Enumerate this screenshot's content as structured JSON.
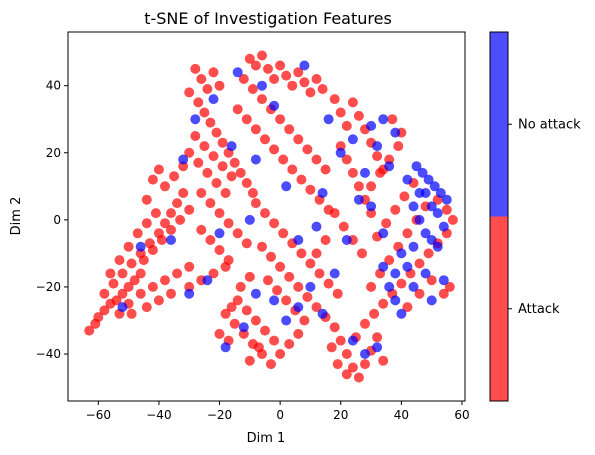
{
  "chart_data": {
    "type": "scatter",
    "title": "t-SNE of Investigation Features",
    "xlabel": "Dim 1",
    "ylabel": "Dim 2",
    "xlim": [
      -70,
      61
    ],
    "ylim": [
      -54,
      56
    ],
    "xticks": [
      -60,
      -40,
      -20,
      0,
      20,
      40,
      60
    ],
    "yticks": [
      -40,
      -20,
      0,
      20,
      40
    ],
    "grid": false,
    "colorbar": {
      "position": "right",
      "entries": [
        {
          "label": "Attack",
          "color": "#ff4d4d"
        },
        {
          "label": "No attack",
          "color": "#4d4dff"
        }
      ]
    },
    "series": [
      {
        "name": "Attack",
        "color": "#ff0000",
        "points": [
          [
            -63,
            -33
          ],
          [
            -61,
            -31
          ],
          [
            -60,
            -29
          ],
          [
            -58,
            -27
          ],
          [
            -56,
            -25
          ],
          [
            -54,
            -24
          ],
          [
            -52,
            -22
          ],
          [
            -50,
            -20
          ],
          [
            -48,
            -18
          ],
          [
            -46,
            -16
          ],
          [
            -58,
            -22
          ],
          [
            -55,
            -19
          ],
          [
            -52,
            -16
          ],
          [
            -49,
            -13
          ],
          [
            -46,
            -10
          ],
          [
            -43,
            -7
          ],
          [
            -40,
            -4
          ],
          [
            -38,
            -1
          ],
          [
            -36,
            2
          ],
          [
            -34,
            5
          ],
          [
            -32,
            8
          ],
          [
            -50,
            -25
          ],
          [
            -46,
            -22
          ],
          [
            -42,
            -20
          ],
          [
            -38,
            -18
          ],
          [
            -34,
            -16
          ],
          [
            -30,
            -14
          ],
          [
            -45,
            -12
          ],
          [
            -42,
            -9
          ],
          [
            -39,
            -6
          ],
          [
            -36,
            -3
          ],
          [
            -33,
            0
          ],
          [
            -30,
            3
          ],
          [
            -38,
            10
          ],
          [
            -35,
            13
          ],
          [
            -32,
            16
          ],
          [
            -40,
            15
          ],
          [
            -42,
            12
          ],
          [
            -44,
            6
          ],
          [
            -41,
            2
          ],
          [
            -47,
            -4
          ],
          [
            -44,
            -1
          ],
          [
            -50,
            -8
          ],
          [
            -53,
            -12
          ],
          [
            -56,
            -16
          ],
          [
            -53,
            -28
          ],
          [
            -49,
            -28
          ],
          [
            -44,
            -26
          ],
          [
            -40,
            -24
          ],
          [
            -36,
            -22
          ],
          [
            -30,
            -20
          ],
          [
            -26,
            -18
          ],
          [
            -22,
            -16
          ],
          [
            -18,
            -14
          ],
          [
            -28,
            45
          ],
          [
            -26,
            42
          ],
          [
            -24,
            39
          ],
          [
            -22,
            44
          ],
          [
            -20,
            40
          ],
          [
            -30,
            38
          ],
          [
            -27,
            35
          ],
          [
            -25,
            32
          ],
          [
            -23,
            29
          ],
          [
            -21,
            26
          ],
          [
            -19,
            23
          ],
          [
            -17,
            20
          ],
          [
            -15,
            17
          ],
          [
            -13,
            14
          ],
          [
            -11,
            11
          ],
          [
            -9,
            8
          ],
          [
            -28,
            25
          ],
          [
            -25,
            22
          ],
          [
            -22,
            19
          ],
          [
            -19,
            16
          ],
          [
            -16,
            13
          ],
          [
            -30,
            20
          ],
          [
            -27,
            17
          ],
          [
            -24,
            14
          ],
          [
            -21,
            11
          ],
          [
            -18,
            8
          ],
          [
            -26,
            8
          ],
          [
            -23,
            5
          ],
          [
            -20,
            2
          ],
          [
            -17,
            -1
          ],
          [
            -14,
            -4
          ],
          [
            -11,
            -7
          ],
          [
            -26,
            -3
          ],
          [
            -23,
            -6
          ],
          [
            -20,
            -9
          ],
          [
            -17,
            -12
          ],
          [
            -10,
            48
          ],
          [
            -8,
            46
          ],
          [
            -6,
            49
          ],
          [
            -4,
            45
          ],
          [
            -2,
            42
          ],
          [
            0,
            46
          ],
          [
            2,
            43
          ],
          [
            4,
            40
          ],
          [
            6,
            44
          ],
          [
            8,
            41
          ],
          [
            10,
            38
          ],
          [
            12,
            42
          ],
          [
            14,
            39
          ],
          [
            -12,
            42
          ],
          [
            -9,
            39
          ],
          [
            -6,
            36
          ],
          [
            -3,
            33
          ],
          [
            0,
            30
          ],
          [
            3,
            27
          ],
          [
            6,
            24
          ],
          [
            9,
            21
          ],
          [
            12,
            18
          ],
          [
            15,
            15
          ],
          [
            -14,
            33
          ],
          [
            -11,
            30
          ],
          [
            -8,
            27
          ],
          [
            -5,
            24
          ],
          [
            -2,
            21
          ],
          [
            1,
            18
          ],
          [
            4,
            15
          ],
          [
            7,
            12
          ],
          [
            10,
            9
          ],
          [
            13,
            6
          ],
          [
            16,
            3
          ],
          [
            18,
            36
          ],
          [
            20,
            32
          ],
          [
            22,
            28
          ],
          [
            24,
            35
          ],
          [
            26,
            31
          ],
          [
            28,
            27
          ],
          [
            30,
            23
          ],
          [
            32,
            19
          ],
          [
            34,
            15
          ],
          [
            20,
            22
          ],
          [
            22,
            18
          ],
          [
            24,
            14
          ],
          [
            26,
            10
          ],
          [
            28,
            6
          ],
          [
            30,
            2
          ],
          [
            -8,
            5
          ],
          [
            -5,
            2
          ],
          [
            -2,
            -1
          ],
          [
            1,
            -4
          ],
          [
            4,
            -7
          ],
          [
            7,
            -10
          ],
          [
            10,
            -13
          ],
          [
            13,
            -16
          ],
          [
            16,
            -19
          ],
          [
            19,
            -22
          ],
          [
            -6,
            -8
          ],
          [
            -3,
            -11
          ],
          [
            0,
            -14
          ],
          [
            3,
            -17
          ],
          [
            6,
            -20
          ],
          [
            9,
            -23
          ],
          [
            12,
            -26
          ],
          [
            15,
            -29
          ],
          [
            -4,
            -18
          ],
          [
            -1,
            -21
          ],
          [
            2,
            -24
          ],
          [
            5,
            -27
          ],
          [
            8,
            -30
          ],
          [
            -18,
            -28
          ],
          [
            -15,
            -31
          ],
          [
            -12,
            -34
          ],
          [
            -9,
            -37
          ],
          [
            -6,
            -40
          ],
          [
            -3,
            -43
          ],
          [
            0,
            -40
          ],
          [
            3,
            -37
          ],
          [
            6,
            -34
          ],
          [
            -14,
            -24
          ],
          [
            -11,
            -27
          ],
          [
            -8,
            -30
          ],
          [
            -5,
            -33
          ],
          [
            -2,
            -36
          ],
          [
            -20,
            -34
          ],
          [
            -17,
            -36
          ],
          [
            -10,
            -42
          ],
          [
            -7,
            -38
          ],
          [
            -16,
            -26
          ],
          [
            -13,
            -20
          ],
          [
            -10,
            -17
          ],
          [
            18,
            -32
          ],
          [
            20,
            -36
          ],
          [
            22,
            -40
          ],
          [
            24,
            -44
          ],
          [
            26,
            -47
          ],
          [
            28,
            -43
          ],
          [
            30,
            -39
          ],
          [
            32,
            -35
          ],
          [
            34,
            -42
          ],
          [
            22,
            -46
          ],
          [
            19,
            -43
          ],
          [
            17,
            -38
          ],
          [
            25,
            -35
          ],
          [
            28,
            -31
          ],
          [
            31,
            -28
          ],
          [
            34,
            -25
          ],
          [
            37,
            -22
          ],
          [
            40,
            -19
          ],
          [
            43,
            -16
          ],
          [
            46,
            -13
          ],
          [
            49,
            -10
          ],
          [
            52,
            -7
          ],
          [
            55,
            -4
          ],
          [
            30,
            -20
          ],
          [
            33,
            -16
          ],
          [
            36,
            -12
          ],
          [
            39,
            -8
          ],
          [
            42,
            -4
          ],
          [
            45,
            0
          ],
          [
            48,
            4
          ],
          [
            32,
            -5
          ],
          [
            35,
            -1
          ],
          [
            38,
            3
          ],
          [
            41,
            7
          ],
          [
            44,
            11
          ],
          [
            30,
            10
          ],
          [
            33,
            14
          ],
          [
            36,
            18
          ],
          [
            39,
            22
          ],
          [
            27,
            -10
          ],
          [
            24,
            -6
          ],
          [
            21,
            -2
          ],
          [
            18,
            2
          ],
          [
            15,
            -6
          ],
          [
            12,
            -10
          ],
          [
            42,
            -26
          ],
          [
            46,
            -22
          ],
          [
            50,
            -18
          ],
          [
            54,
            -22
          ],
          [
            56,
            -20
          ],
          [
            57,
            0
          ],
          [
            55,
            3
          ],
          [
            52,
            6
          ],
          [
            40,
            26
          ],
          [
            37,
            30
          ]
        ]
      },
      {
        "name": "No attack",
        "color": "#0000ff",
        "points": [
          [
            45,
            16
          ],
          [
            47,
            14
          ],
          [
            49,
            12
          ],
          [
            51,
            10
          ],
          [
            53,
            8
          ],
          [
            55,
            6
          ],
          [
            48,
            8
          ],
          [
            50,
            4
          ],
          [
            52,
            2
          ],
          [
            54,
            -2
          ],
          [
            46,
            0
          ],
          [
            48,
            -4
          ],
          [
            50,
            -6
          ],
          [
            52,
            -8
          ],
          [
            44,
            4
          ],
          [
            46,
            8
          ],
          [
            42,
            12
          ],
          [
            44,
            -8
          ],
          [
            40,
            -10
          ],
          [
            42,
            -14
          ],
          [
            38,
            -16
          ],
          [
            36,
            -20
          ],
          [
            34,
            -14
          ],
          [
            38,
            -24
          ],
          [
            40,
            -28
          ],
          [
            44,
            -20
          ],
          [
            48,
            -16
          ],
          [
            50,
            -24
          ],
          [
            54,
            -18
          ],
          [
            30,
            28
          ],
          [
            34,
            30
          ],
          [
            38,
            26
          ],
          [
            32,
            22
          ],
          [
            36,
            16
          ],
          [
            28,
            14
          ],
          [
            26,
            6
          ],
          [
            30,
            4
          ],
          [
            34,
            -4
          ],
          [
            22,
            -6
          ],
          [
            18,
            -16
          ],
          [
            10,
            -20
          ],
          [
            6,
            -26
          ],
          [
            2,
            -30
          ],
          [
            14,
            -28
          ],
          [
            24,
            -36
          ],
          [
            28,
            -40
          ],
          [
            32,
            -38
          ],
          [
            -2,
            -24
          ],
          [
            -8,
            -22
          ],
          [
            -12,
            -32
          ],
          [
            -18,
            -38
          ],
          [
            -24,
            -18
          ],
          [
            -30,
            -22
          ],
          [
            -32,
            18
          ],
          [
            -28,
            30
          ],
          [
            -22,
            36
          ],
          [
            -14,
            44
          ],
          [
            -6,
            40
          ],
          [
            -2,
            34
          ],
          [
            8,
            46
          ],
          [
            16,
            30
          ],
          [
            -16,
            22
          ],
          [
            -8,
            18
          ],
          [
            2,
            10
          ],
          [
            -10,
            0
          ],
          [
            -20,
            -4
          ],
          [
            -36,
            -6
          ],
          [
            -46,
            -8
          ],
          [
            -52,
            -26
          ],
          [
            6,
            -6
          ],
          [
            12,
            -2
          ],
          [
            20,
            20
          ],
          [
            24,
            24
          ],
          [
            14,
            8
          ]
        ]
      }
    ]
  }
}
